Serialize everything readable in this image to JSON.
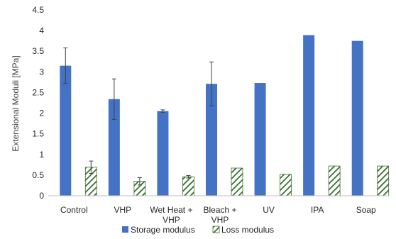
{
  "chart_data": {
    "type": "bar",
    "title": "",
    "xlabel": "",
    "ylabel": "Extensional Moduli [MPa]",
    "ylim": [
      0,
      4.5
    ],
    "ytick_step": 0.5,
    "grid": false,
    "legend_position": "bottom",
    "categories": [
      "Control",
      "VHP",
      "Wet Heat + VHP",
      "Bleach + VHP",
      "UV",
      "IPA",
      "Soap"
    ],
    "category_label_lines": [
      [
        "Control"
      ],
      [
        "VHP"
      ],
      [
        "Wet Heat +",
        "VHP"
      ],
      [
        "Bleach +",
        "VHP"
      ],
      [
        "UV"
      ],
      [
        "IPA"
      ],
      [
        "Soap"
      ]
    ],
    "series": [
      {
        "name": "Storage modulus",
        "color": "#4472C4",
        "pattern": "solid",
        "values": [
          3.15,
          2.34,
          2.05,
          2.71,
          2.73,
          3.89,
          3.75
        ],
        "errors": [
          0.43,
          0.49,
          0.03,
          0.53,
          null,
          null,
          null
        ]
      },
      {
        "name": "Loss modulus",
        "color": "#3A6E2E",
        "pattern": "diagonal-hatch",
        "values": [
          0.69,
          0.35,
          0.46,
          0.67,
          0.52,
          0.72,
          0.72
        ],
        "errors": [
          0.15,
          0.09,
          0.03,
          null,
          null,
          null,
          null
        ]
      }
    ]
  }
}
